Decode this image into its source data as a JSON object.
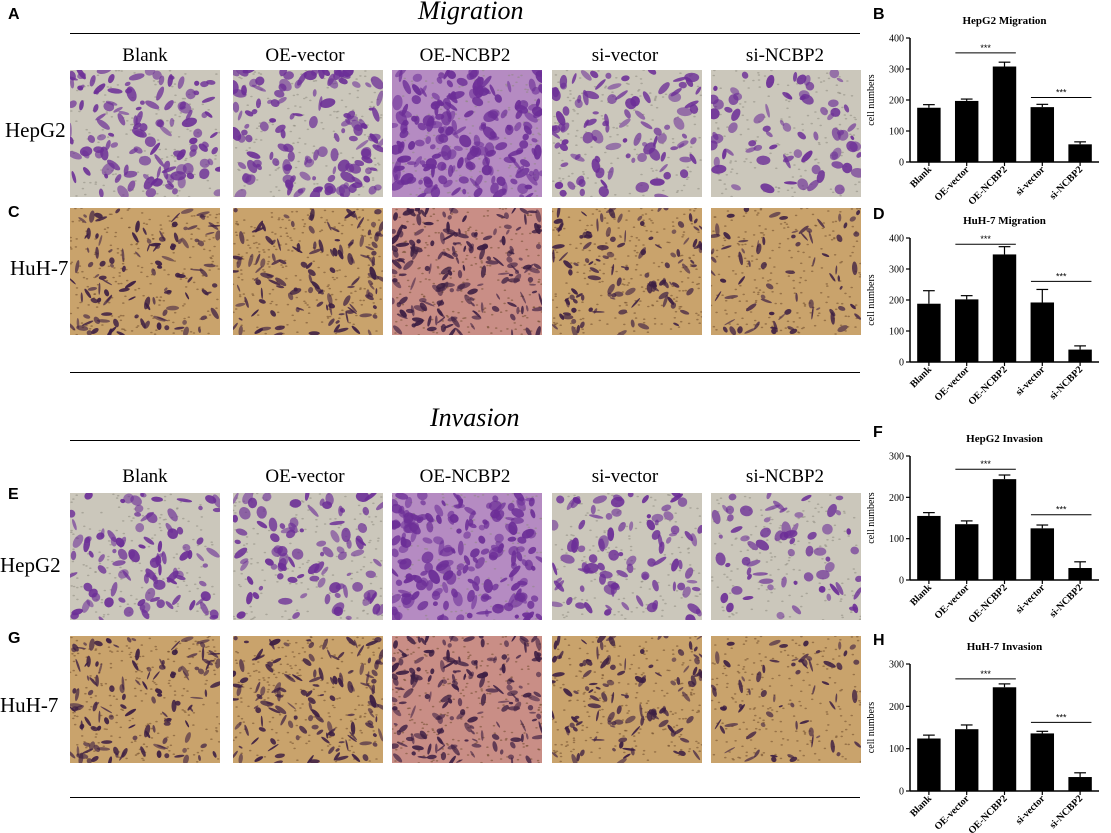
{
  "sections": {
    "migration_title": "Migration",
    "invasion_title": "Invasion"
  },
  "panel_letters": [
    "A",
    "B",
    "C",
    "D",
    "E",
    "F",
    "G",
    "H"
  ],
  "conditions": [
    "Blank",
    "OE-vector",
    "OE-NCBP2",
    "si-vector",
    "si-NCBP2"
  ],
  "cell_lines": [
    "HepG2",
    "HuH-7"
  ],
  "colors": {
    "hepg2_bg": "#cbc7bb",
    "huh7_bg": "#c9a36c",
    "hepg2_cell": "#6c2e97",
    "huh7_cell": "#3d1f43",
    "bar": "#000000"
  },
  "microscopy": [
    {
      "section": "migration",
      "line": "HepG2",
      "densities": [
        0.55,
        0.6,
        0.95,
        0.4,
        0.25
      ]
    },
    {
      "section": "migration",
      "line": "HuH-7",
      "densities": [
        0.5,
        0.55,
        0.85,
        0.5,
        0.25
      ]
    },
    {
      "section": "invasion",
      "line": "HepG2",
      "densities": [
        0.4,
        0.35,
        0.9,
        0.35,
        0.2
      ]
    },
    {
      "section": "invasion",
      "line": "HuH-7",
      "densities": [
        0.55,
        0.6,
        0.8,
        0.5,
        0.2
      ]
    }
  ],
  "chart_data": [
    {
      "type": "bar",
      "title": "HepG2 Migration",
      "ylabel": "cell numbers",
      "categories": [
        "Blank",
        "OE-vector",
        "OE-NCBP2",
        "si-vector",
        "si-NCBP2"
      ],
      "values": [
        175,
        197,
        308,
        177,
        57
      ],
      "errors": [
        10,
        6,
        14,
        9,
        8
      ],
      "ylim": [
        0,
        400
      ],
      "yticks": [
        0,
        100,
        200,
        300,
        400
      ],
      "significance": [
        {
          "from": 1,
          "to": 2,
          "label": "***",
          "y": 352
        },
        {
          "from": 3,
          "to": 4,
          "label": "***",
          "y": 208
        }
      ]
    },
    {
      "type": "bar",
      "title": "HuH-7 Migration",
      "ylabel": "cell numbers",
      "categories": [
        "Blank",
        "OE-vector",
        "OE-NCBP2",
        "si-vector",
        "si-NCBP2"
      ],
      "values": [
        188,
        202,
        347,
        192,
        40
      ],
      "errors": [
        42,
        12,
        25,
        42,
        12
      ],
      "ylim": [
        0,
        400
      ],
      "yticks": [
        0,
        100,
        200,
        300,
        400
      ],
      "significance": [
        {
          "from": 1,
          "to": 2,
          "label": "***",
          "y": 380
        },
        {
          "from": 3,
          "to": 4,
          "label": "***",
          "y": 260
        }
      ]
    },
    {
      "type": "bar",
      "title": "HepG2 Invasion",
      "ylabel": "cell numbers",
      "categories": [
        "Blank",
        "OE-vector",
        "OE-NCBP2",
        "si-vector",
        "si-NCBP2"
      ],
      "values": [
        155,
        135,
        244,
        125,
        29
      ],
      "errors": [
        8,
        8,
        10,
        8,
        15
      ],
      "ylim": [
        0,
        300
      ],
      "yticks": [
        0,
        100,
        200,
        300
      ],
      "significance": [
        {
          "from": 1,
          "to": 2,
          "label": "***",
          "y": 268
        },
        {
          "from": 3,
          "to": 4,
          "label": "***",
          "y": 158
        }
      ]
    },
    {
      "type": "bar",
      "title": "HuH-7 Invasion",
      "ylabel": "cell numbers",
      "categories": [
        "Blank",
        "OE-vector",
        "OE-NCBP2",
        "si-vector",
        "si-NCBP2"
      ],
      "values": [
        124,
        146,
        245,
        136,
        33
      ],
      "errors": [
        8,
        10,
        8,
        5,
        10
      ],
      "ylim": [
        0,
        300
      ],
      "yticks": [
        0,
        100,
        200,
        300
      ],
      "significance": [
        {
          "from": 1,
          "to": 2,
          "label": "***",
          "y": 265
        },
        {
          "from": 3,
          "to": 4,
          "label": "***",
          "y": 162
        }
      ]
    }
  ]
}
